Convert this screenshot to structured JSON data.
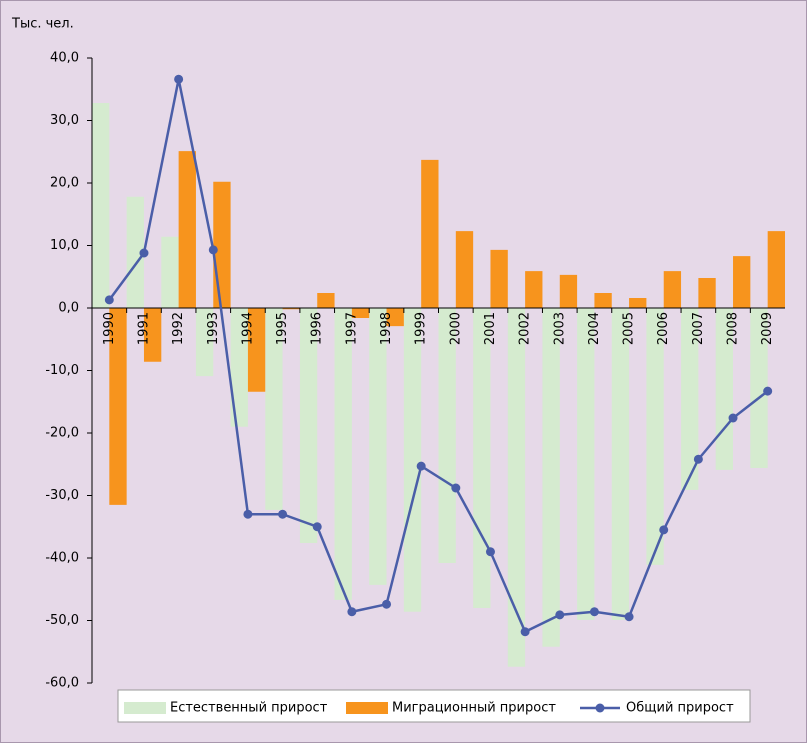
{
  "chart_data": {
    "type": "bar_line",
    "y_label": "Тыс. чел.",
    "categories": [
      "1990",
      "1991",
      "1992",
      "1993",
      "1994",
      "1995",
      "1996",
      "1997",
      "1998",
      "1999",
      "2000",
      "2001",
      "2002",
      "2003",
      "2004",
      "2005",
      "2006",
      "2007",
      "2008",
      "2009"
    ],
    "series": [
      {
        "name": "Естественный прирост",
        "type": "bar",
        "color": "#d5ebcf",
        "values": [
          32.8,
          17.8,
          11.4,
          -10.9,
          -19.0,
          -32.3,
          -37.6,
          -46.7,
          -44.3,
          -48.6,
          -40.8,
          -48.0,
          -57.4,
          -54.2,
          -49.9,
          -49.9,
          -41.1,
          -29.1,
          -25.9,
          -25.6
        ]
      },
      {
        "name": "Миграционный прирост",
        "type": "bar",
        "color": "#f7941d",
        "values": [
          -31.5,
          -8.6,
          25.1,
          20.2,
          -13.4,
          -0.2,
          2.4,
          -1.6,
          -2.9,
          23.7,
          12.3,
          9.3,
          5.9,
          5.3,
          2.4,
          1.6,
          5.9,
          4.8,
          8.3,
          12.3
        ]
      },
      {
        "name": "Общий прирост",
        "type": "line",
        "color": "#4a5ea8",
        "values": [
          1.3,
          8.8,
          36.6,
          9.3,
          -33.0,
          -33.0,
          -35.0,
          -48.6,
          -47.4,
          -25.3,
          -28.8,
          -39.0,
          -51.8,
          -49.1,
          -48.6,
          -49.4,
          -35.5,
          -24.2,
          -17.6,
          -13.3
        ]
      }
    ],
    "ylim": [
      -60,
      40
    ],
    "yticks": [
      {
        "value": -60,
        "label": "-60,0"
      },
      {
        "value": -50,
        "label": "-50,0"
      },
      {
        "value": -40,
        "label": "-40,0"
      },
      {
        "value": -30,
        "label": "-30,0"
      },
      {
        "value": -20,
        "label": "-20,0"
      },
      {
        "value": -10,
        "label": "-10,0"
      },
      {
        "value": 0,
        "label": "0,0"
      },
      {
        "value": 10,
        "label": "10,0"
      },
      {
        "value": 20,
        "label": "20,0"
      },
      {
        "value": 30,
        "label": "30,0"
      },
      {
        "value": 40,
        "label": "40,0"
      }
    ]
  }
}
